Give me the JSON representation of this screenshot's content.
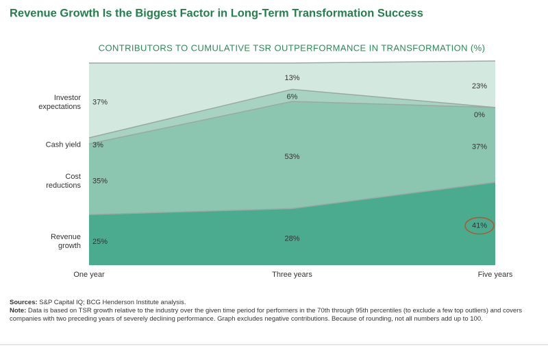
{
  "chart_data": {
    "type": "stacked_area",
    "title": "Revenue Growth Is the Biggest Factor in Long-Term Transformation Success",
    "subtitle": "CONTRIBUTORS TO CUMULATIVE TSR OUTPERFORMANCE IN TRANSFORMATION (%)",
    "categories": [
      "One year",
      "Three years",
      "Five years"
    ],
    "ylim": [
      0,
      100
    ],
    "series": [
      {
        "name": "Revenue growth",
        "color": "#4aab8f",
        "values": [
          25,
          28,
          41
        ],
        "value_labels": [
          "25%",
          "28%",
          "41%"
        ]
      },
      {
        "name": "Cost reductions",
        "color": "#8cc5b0",
        "values": [
          35,
          53,
          37
        ],
        "value_labels": [
          "35%",
          "53%",
          "37%"
        ]
      },
      {
        "name": "Cash yield",
        "color": "#a8d2c2",
        "values": [
          3,
          6,
          0
        ],
        "value_labels": [
          "3%",
          "6%",
          "0%"
        ]
      },
      {
        "name": "Investor expectations",
        "color": "#d3e8df",
        "values": [
          37,
          13,
          23
        ],
        "value_labels": [
          "37%",
          "13%",
          "23%"
        ]
      }
    ]
  },
  "footer": {
    "sources_label": "Sources:",
    "sources": "S&P Capital IQ; BCG Henderson Institute analysis.",
    "note_label": "Note:",
    "note": "Data is based on TSR growth relative to the industry over the given time period for performers in the 70th through 95th percentiles (to exclude a few top outliers) and covers companies with two preceding years of severely declining performance. Graph excludes negative contributions. Because of rounding, not all numbers add up to 100."
  }
}
